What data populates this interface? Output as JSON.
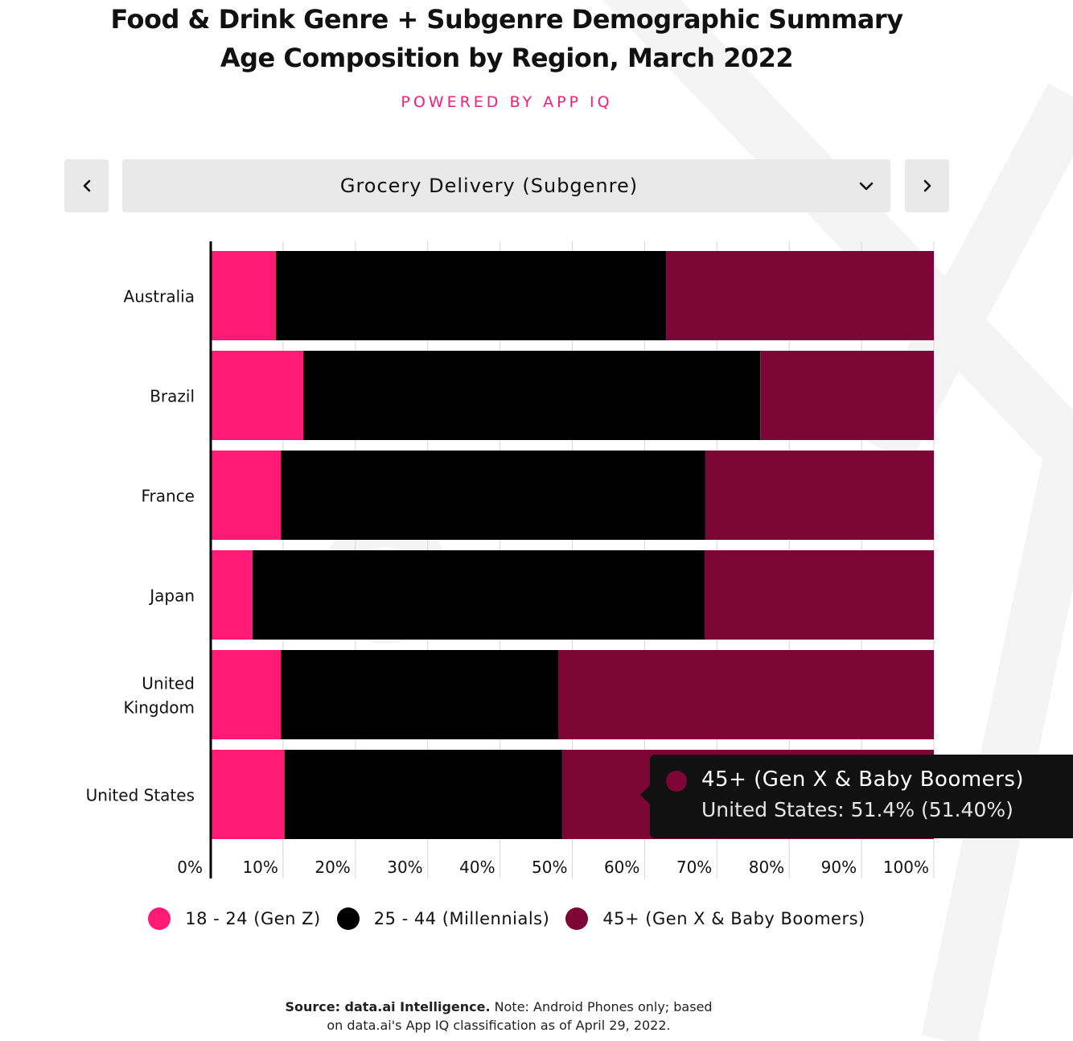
{
  "header": {
    "title_line1": "Food & Drink Genre + Subgenre Demographic Summary",
    "title_line2": "Age Composition by Region, March 2022",
    "powered_by": "POWERED BY APP IQ"
  },
  "controls": {
    "prev_icon": "chevron-left-icon",
    "next_icon": "chevron-right-icon",
    "selected_option": "Grocery Delivery (Subgenre)",
    "dropdown_icon": "chevron-down-icon"
  },
  "colors": {
    "gen_z": "#ff1a75",
    "millennials": "#000000",
    "gen_x_boomers": "#7d0636",
    "accent": "#ff1a75",
    "tooltip_bg": "#111111"
  },
  "chart_data": {
    "type": "bar",
    "orientation": "horizontal",
    "stacked": true,
    "categories": [
      "Australia",
      "Brazil",
      "France",
      "Japan",
      "United Kingdom",
      "United States"
    ],
    "category_lines": [
      [
        "Australia"
      ],
      [
        "Brazil"
      ],
      [
        "France"
      ],
      [
        "Japan"
      ],
      [
        "United",
        "Kingdom"
      ],
      [
        "United States"
      ]
    ],
    "series": [
      {
        "name": "18 - 24 (Gen Z)",
        "values": [
          9.0,
          12.8,
          9.7,
          5.8,
          9.7,
          10.2
        ]
      },
      {
        "name": "25 - 44 (Millennials)",
        "values": [
          54.0,
          63.2,
          58.7,
          62.5,
          38.4,
          38.4
        ]
      },
      {
        "name": "45+ (Gen X & Baby Boomers)",
        "values": [
          37.0,
          24.0,
          31.6,
          31.7,
          51.9,
          51.4
        ]
      }
    ],
    "xlim": [
      0,
      100
    ],
    "x_ticks": [
      "0%",
      "10%",
      "20%",
      "30%",
      "40%",
      "50%",
      "60%",
      "70%",
      "80%",
      "90%",
      "100%"
    ],
    "grid": true,
    "legend_position": "bottom"
  },
  "tooltip": {
    "series": "45+ (Gen X & Baby Boomers)",
    "value_text": "United States: 51.4% (51.40%)"
  },
  "footer": {
    "source_bold": "Source: data.ai Intelligence.",
    "note_line1": " Note: Android Phones only; based",
    "note_line2": "on data.ai's App IQ classification as of April 29, 2022."
  }
}
